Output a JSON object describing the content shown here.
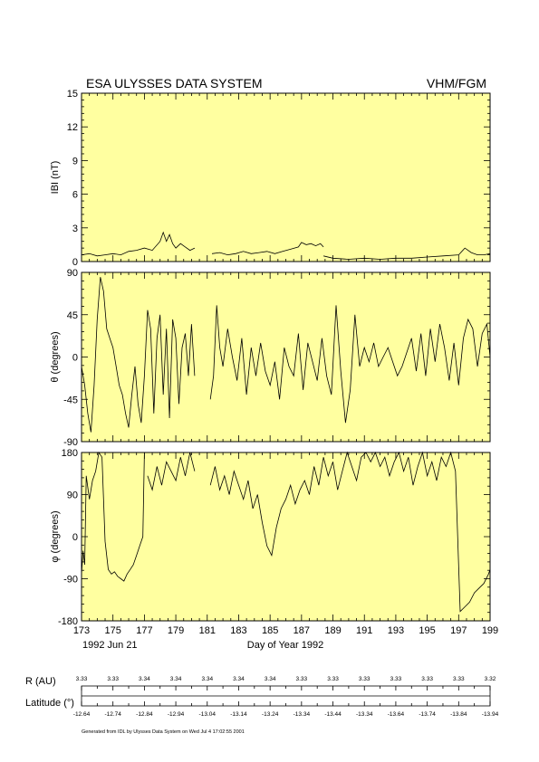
{
  "header": {
    "title": "ESA ULYSSES DATA SYSTEM",
    "instrument": "VHM/FGM"
  },
  "chart_data": {
    "type": "line",
    "x": {
      "label": "Day of Year 1992",
      "range": [
        173,
        199
      ],
      "tick_labels": [
        "173",
        "175",
        "177",
        "179",
        "181",
        "183",
        "185",
        "187",
        "189",
        "191",
        "193",
        "195",
        "197",
        "199"
      ],
      "start_date": "1992 Jun 21"
    },
    "panels": [
      {
        "ylabel": "IBI (nT)",
        "ylim": [
          0,
          15
        ],
        "ytick_labels": [
          "0",
          "3",
          "6",
          "9",
          "12",
          "15"
        ],
        "series": [
          {
            "x": [
              173.0,
              173.5,
              174.0,
              174.5,
              175.0,
              175.5,
              176.0,
              176.5,
              177.0,
              177.5,
              178.0,
              178.2,
              178.4,
              178.6,
              178.8,
              179.0,
              179.3,
              179.6,
              179.9,
              180.2
            ],
            "y": [
              0.6,
              0.7,
              0.5,
              0.6,
              0.7,
              0.6,
              0.9,
              1.0,
              1.2,
              1.0,
              1.8,
              2.6,
              1.8,
              2.4,
              1.6,
              1.2,
              1.6,
              1.3,
              1.0,
              1.2
            ]
          },
          {
            "x": [
              181.3,
              181.8,
              182.3,
              182.8,
              183.3,
              183.8,
              184.3,
              184.8,
              185.3,
              185.8,
              186.3,
              186.8,
              187.0,
              187.3,
              187.6,
              187.9,
              188.2,
              188.4
            ],
            "y": [
              0.7,
              0.8,
              0.6,
              0.7,
              0.9,
              0.7,
              0.8,
              0.9,
              0.7,
              0.9,
              1.1,
              1.3,
              1.7,
              1.5,
              1.6,
              1.4,
              1.6,
              1.3
            ]
          },
          {
            "x": [
              188.4,
              189.0,
              190.0,
              191.0,
              192.0,
              193.0,
              194.0,
              195.0,
              196.0,
              197.0,
              197.4,
              197.8,
              198.2,
              198.6,
              199.0
            ],
            "y": [
              0.5,
              0.3,
              0.2,
              0.3,
              0.2,
              0.3,
              0.3,
              0.4,
              0.5,
              0.6,
              1.2,
              0.8,
              0.6,
              0.6,
              0.7
            ]
          }
        ]
      },
      {
        "ylabel": "θ (degrees)",
        "ylim": [
          -90,
          90
        ],
        "ytick_labels": [
          "-90",
          "-45",
          "0",
          "45",
          "90"
        ],
        "series": [
          {
            "x": [
              173.0,
              173.2,
              173.4,
              173.6,
              173.8,
              174.0,
              174.2,
              174.4,
              174.6,
              174.8,
              175.0,
              175.2,
              175.4,
              175.6,
              175.8,
              176.0,
              176.2,
              176.4,
              176.6,
              176.8,
              177.0,
              177.2,
              177.4,
              177.6,
              177.8,
              178.0,
              178.2,
              178.4,
              178.6,
              178.8,
              179.0,
              179.2,
              179.4,
              179.6,
              179.8,
              180.0,
              180.2
            ],
            "y": [
              -10,
              -30,
              -60,
              -80,
              -30,
              40,
              85,
              70,
              30,
              20,
              10,
              -10,
              -30,
              -40,
              -60,
              -75,
              -40,
              -10,
              -50,
              -70,
              -20,
              50,
              30,
              -60,
              20,
              45,
              -40,
              30,
              -65,
              40,
              20,
              -50,
              10,
              25,
              -20,
              35,
              -20
            ]
          },
          {
            "x": [
              181.2,
              181.4,
              181.6,
              181.8,
              182.0,
              182.3,
              182.6,
              182.9,
              183.2,
              183.5,
              183.8,
              184.1,
              184.4,
              184.7,
              185.0,
              185.3,
              185.6,
              185.9,
              186.2,
              186.5,
              186.8,
              187.1,
              187.4,
              187.7,
              188.0,
              188.3,
              188.6,
              188.9,
              189.2,
              189.5,
              189.8,
              190.1,
              190.4,
              190.7,
              191.0,
              191.3,
              191.6,
              191.9,
              192.2,
              192.5,
              192.8,
              193.1,
              193.4,
              193.7,
              194.0,
              194.3,
              194.6,
              194.9,
              195.2,
              195.5,
              195.8,
              196.1,
              196.4,
              196.7,
              197.0,
              197.3,
              197.6,
              197.9,
              198.2,
              198.5,
              198.8,
              199.0
            ],
            "y": [
              -45,
              -20,
              55,
              10,
              -10,
              30,
              0,
              -25,
              20,
              -40,
              10,
              -20,
              15,
              -15,
              -30,
              -5,
              -45,
              10,
              -10,
              -20,
              25,
              -35,
              15,
              -5,
              -25,
              20,
              -20,
              -40,
              55,
              -15,
              -70,
              -35,
              45,
              -10,
              10,
              -5,
              15,
              -10,
              0,
              10,
              -5,
              -20,
              -10,
              5,
              20,
              -15,
              25,
              -20,
              30,
              -5,
              35,
              10,
              -25,
              15,
              -30,
              20,
              40,
              30,
              -10,
              25,
              35,
              0
            ]
          }
        ]
      },
      {
        "ylabel": "φ (degrees)",
        "ylim": [
          -180,
          180
        ],
        "ytick_labels": [
          "-180",
          "-90",
          "0",
          "90",
          "180"
        ],
        "series": [
          {
            "x": [
              173.0,
              173.1,
              173.2,
              173.3,
              173.5,
              173.7,
              173.9,
              174.1,
              174.3,
              174.5,
              174.7,
              174.9,
              175.1,
              175.3,
              175.5,
              175.7,
              175.9,
              176.1,
              176.3,
              176.5,
              176.7,
              176.9,
              177.0
            ],
            "y": [
              -80,
              -30,
              -60,
              130,
              80,
              120,
              140,
              180,
              170,
              -10,
              -70,
              -80,
              -75,
              -85,
              -90,
              -95,
              -80,
              -70,
              -60,
              -40,
              -20,
              0,
              180
            ]
          },
          {
            "x": [
              177.2,
              177.5,
              177.8,
              178.1,
              178.4,
              178.7,
              179.0,
              179.3,
              179.6,
              179.9,
              180.2
            ],
            "y": [
              130,
              100,
              150,
              110,
              160,
              140,
              120,
              170,
              130,
              180,
              140
            ]
          },
          {
            "x": [
              181.2,
              181.5,
              181.8,
              182.1,
              182.4,
              182.7,
              183.0,
              183.3,
              183.6,
              183.9,
              184.2,
              184.5,
              184.8,
              185.1,
              185.4,
              185.7,
              186.0,
              186.3,
              186.6,
              186.9,
              187.2,
              187.5,
              187.8,
              188.1,
              188.4,
              188.7,
              189.0,
              189.3,
              189.6,
              189.9,
              190.2,
              190.5,
              190.8,
              191.1,
              191.4,
              191.7,
              192.0,
              192.3,
              192.6,
              192.9,
              193.2,
              193.5,
              193.8,
              194.1,
              194.4,
              194.7,
              195.0,
              195.3,
              195.6,
              195.9,
              196.2,
              196.5,
              196.8,
              197.1,
              197.4,
              197.7,
              198.0,
              198.3,
              198.6,
              198.9,
              199.0
            ],
            "y": [
              110,
              150,
              100,
              130,
              90,
              140,
              110,
              80,
              120,
              60,
              90,
              30,
              -20,
              -40,
              20,
              60,
              80,
              110,
              70,
              100,
              120,
              90,
              150,
              110,
              170,
              130,
              160,
              100,
              140,
              180,
              150,
              120,
              170,
              180,
              160,
              180,
              150,
              170,
              130,
              160,
              180,
              140,
              170,
              110,
              150,
              180,
              130,
              160,
              120,
              170,
              150,
              180,
              140,
              -160,
              -150,
              -140,
              -120,
              -110,
              -100,
              -80,
              -70
            ]
          }
        ]
      }
    ],
    "orbit": {
      "r_label": "R (AU)",
      "r_values": [
        "3.33",
        "3.33",
        "3.34",
        "3.34",
        "3.34",
        "3.34",
        "3.34",
        "3.33",
        "3.33",
        "3.33",
        "3.33",
        "3.33",
        "3.33",
        "3.32"
      ],
      "lat_label": "Latitude (°)",
      "lat_values": [
        "-12.64",
        "-12.74",
        "-12.84",
        "-12.94",
        "-13.04",
        "-13.14",
        "-13.24",
        "-13.34",
        "-13.44",
        "-13.34",
        "-13.64",
        "-13.74",
        "-13.84",
        "-13.94"
      ]
    },
    "grid": false,
    "colors": {
      "panel_bg": "#ffffa0",
      "line": "#000000"
    }
  },
  "footer": {
    "generated": "Generated from IDL by Ulysses Data System on Wed Jul  4 17:02:55 2001"
  }
}
